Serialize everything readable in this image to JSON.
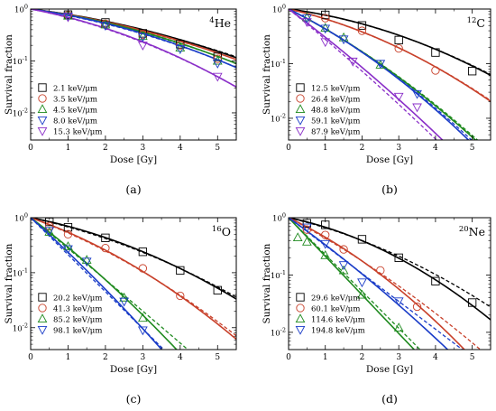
{
  "chart_data": [
    {
      "type": "scatter",
      "panel_label": "(a)",
      "ion_mass": "4",
      "ion_symbol": "He",
      "xlabel": "Dose [Gy]",
      "ylabel": "Survival fraction",
      "xlim": [
        0,
        5.5
      ],
      "ylim": [
        0.003,
        1
      ],
      "yscale": "log",
      "x_ticks": [
        0,
        1,
        2,
        3,
        4,
        5
      ],
      "y_ticks": [
        {
          "value": 1,
          "mantissa": "10",
          "exponent": "0"
        },
        {
          "value": 0.1,
          "mantissa": "10",
          "exponent": "-1"
        },
        {
          "value": 0.01,
          "mantissa": "10",
          "exponent": "-2"
        }
      ],
      "series": [
        {
          "name": "2.1 keV/μm",
          "marker": "square",
          "color": "#000000",
          "points": [
            [
              1,
              0.78
            ],
            [
              2,
              0.55
            ],
            [
              3,
              0.34
            ],
            [
              4,
              0.21
            ],
            [
              5,
              0.12
            ]
          ],
          "alpha": 0.2,
          "beta": 0.035,
          "alpha_dashed": 0.22,
          "beta_dashed": 0.03
        },
        {
          "name": "3.5 keV/μm",
          "marker": "circle",
          "color": "#c8402a",
          "points": [
            [
              1,
              0.76
            ],
            [
              2,
              0.52
            ],
            [
              3,
              0.32
            ],
            [
              4,
              0.2
            ],
            [
              5,
              0.11
            ]
          ],
          "alpha": 0.21,
          "beta": 0.036,
          "alpha_dashed": 0.23,
          "beta_dashed": 0.032
        },
        {
          "name": "4.5 keV/μm",
          "marker": "triangle-up",
          "color": "#1f8a1f",
          "points": [
            [
              1,
              0.74
            ],
            [
              2,
              0.5
            ],
            [
              3,
              0.3
            ],
            [
              4,
              0.18
            ],
            [
              5,
              0.1
            ]
          ],
          "alpha": 0.22,
          "beta": 0.04,
          "alpha_dashed": 0.24,
          "beta_dashed": 0.036
        },
        {
          "name": "8.0 keV/μm",
          "marker": "triangle-down",
          "color": "#1a3cc8",
          "points": [
            [
              1,
              0.72
            ],
            [
              2,
              0.48
            ],
            [
              3,
              0.29
            ],
            [
              4,
              0.17
            ],
            [
              5,
              0.09
            ]
          ],
          "alpha": 0.23,
          "beta": 0.044,
          "alpha_dashed": 0.25,
          "beta_dashed": 0.04
        },
        {
          "name": "15.3 keV/μm",
          "marker": "triangle-down",
          "color": "#8a2fc8",
          "points": [
            [
              1,
              0.7
            ],
            [
              3,
              0.2
            ],
            [
              5,
              0.05
            ]
          ],
          "alpha": 0.31,
          "beta": 0.058,
          "alpha_dashed": 0.33,
          "beta_dashed": 0.054
        }
      ]
    },
    {
      "type": "scatter",
      "panel_label": "(b)",
      "ion_mass": "12",
      "ion_symbol": "C",
      "xlabel": "Dose [Gy]",
      "ylabel": "Survival fraction",
      "xlim": [
        0,
        5.5
      ],
      "ylim": [
        0.004,
        1
      ],
      "yscale": "log",
      "x_ticks": [
        0,
        1,
        2,
        3,
        4,
        5
      ],
      "y_ticks": [
        {
          "value": 1,
          "mantissa": "10",
          "exponent": "0"
        },
        {
          "value": 0.1,
          "mantissa": "10",
          "exponent": "-1"
        },
        {
          "value": 0.01,
          "mantissa": "10",
          "exponent": "-2"
        }
      ],
      "series": [
        {
          "name": "12.5 keV/μm",
          "marker": "square",
          "color": "#000000",
          "points": [
            [
              1,
              0.78
            ],
            [
              2,
              0.5
            ],
            [
              3,
              0.27
            ],
            [
              4,
              0.16
            ],
            [
              5,
              0.073
            ]
          ],
          "alpha": 0.2,
          "beta": 0.056,
          "alpha_dashed": 0.21,
          "beta_dashed": 0.053
        },
        {
          "name": "26.4 keV/μm",
          "marker": "circle",
          "color": "#c8402a",
          "points": [
            [
              1,
              0.68
            ],
            [
              2,
              0.4
            ],
            [
              3,
              0.19
            ],
            [
              4,
              0.075
            ]
          ],
          "alpha": 0.35,
          "beta": 0.065,
          "alpha_dashed": 0.36,
          "beta_dashed": 0.062
        },
        {
          "name": "48.8 keV/μm",
          "marker": "triangle-up",
          "color": "#1f8a1f",
          "points": [
            [
              0.5,
              0.7
            ],
            [
              1,
              0.45
            ],
            [
              1.5,
              0.3
            ],
            [
              2.5,
              0.095
            ]
          ],
          "alpha": 0.78,
          "beta": 0.06,
          "alpha_dashed": 0.78,
          "beta_dashed": 0.057
        },
        {
          "name": "59.1 keV/μm",
          "marker": "triangle-down",
          "color": "#1a3cc8",
          "points": [
            [
              0.5,
              0.68
            ],
            [
              1,
              0.44
            ],
            [
              1.5,
              0.28
            ],
            [
              2.5,
              0.1
            ],
            [
              3.5,
              0.028
            ]
          ],
          "alpha": 0.76,
          "beta": 0.075,
          "alpha_dashed": 0.78,
          "beta_dashed": 0.066
        },
        {
          "name": "87.9 keV/μm",
          "marker": "triangle-down",
          "color": "#8a2fc8",
          "points": [
            [
              0.5,
              0.58
            ],
            [
              1,
              0.25
            ],
            [
              1.75,
              0.11
            ],
            [
              3,
              0.025
            ],
            [
              3.5,
              0.016
            ]
          ],
          "alpha": 1.15,
          "beta": 0.04,
          "alpha_dashed": 1.25,
          "beta_dashed": 0.03
        }
      ]
    },
    {
      "type": "scatter",
      "panel_label": "(c)",
      "ion_mass": "16",
      "ion_symbol": "O",
      "xlabel": "Dose [Gy]",
      "ylabel": "Survival fraction",
      "xlim": [
        0,
        5.5
      ],
      "ylim": [
        0.004,
        1
      ],
      "yscale": "log",
      "x_ticks": [
        0,
        1,
        2,
        3,
        4,
        5
      ],
      "y_ticks": [
        {
          "value": 1,
          "mantissa": "10",
          "exponent": "0"
        },
        {
          "value": 0.1,
          "mantissa": "10",
          "exponent": "-1"
        },
        {
          "value": 0.01,
          "mantissa": "10",
          "exponent": "-2"
        }
      ],
      "series": [
        {
          "name": "20.2 keV/μm",
          "marker": "square",
          "color": "#000000",
          "points": [
            [
              0.5,
              0.84
            ],
            [
              1,
              0.67
            ],
            [
              2,
              0.43
            ],
            [
              3,
              0.24
            ],
            [
              4,
              0.11
            ],
            [
              5,
              0.048
            ]
          ],
          "alpha": 0.3,
          "beta": 0.058,
          "alpha_dashed": 0.34,
          "beta_dashed": 0.048
        },
        {
          "name": "41.3 keV/μm",
          "marker": "circle",
          "color": "#c8402a",
          "points": [
            [
              0.5,
              0.7
            ],
            [
              1,
              0.5
            ],
            [
              2,
              0.28
            ],
            [
              3,
              0.12
            ],
            [
              4,
              0.038
            ]
          ],
          "alpha": 0.54,
          "beta": 0.07,
          "alpha_dashed": 0.58,
          "beta_dashed": 0.058
        },
        {
          "name": "85.2 keV/μm",
          "marker": "triangle-up",
          "color": "#1f8a1f",
          "points": [
            [
              0.5,
              0.55
            ],
            [
              1,
              0.3
            ],
            [
              1.5,
              0.17
            ],
            [
              2.5,
              0.035
            ],
            [
              3,
              0.015
            ]
          ],
          "alpha": 1.18,
          "beta": 0.06,
          "alpha_dashed": 1.28,
          "beta_dashed": 0.008
        },
        {
          "name": "98.1 keV/μm",
          "marker": "triangle-down",
          "color": "#1a3cc8",
          "points": [
            [
              0.5,
              0.58
            ],
            [
              1,
              0.27
            ],
            [
              1.5,
              0.16
            ],
            [
              2.5,
              0.03
            ],
            [
              3,
              0.009
            ]
          ],
          "alpha": 1.4,
          "beta": 0.05,
          "alpha_dashed": 1.55,
          "beta_dashed": 0.0
        }
      ]
    },
    {
      "type": "scatter",
      "panel_label": "(d)",
      "ion_mass": "20",
      "ion_symbol": "Ne",
      "xlabel": "Dose [Gy]",
      "ylabel": "Survival fraction",
      "xlim": [
        0,
        5.5
      ],
      "ylim": [
        0.005,
        1
      ],
      "yscale": "log",
      "x_ticks": [
        0,
        1,
        2,
        3,
        4,
        5
      ],
      "y_ticks": [
        {
          "value": 1,
          "mantissa": "10",
          "exponent": "0"
        },
        {
          "value": 0.1,
          "mantissa": "10",
          "exponent": "-1"
        },
        {
          "value": 0.01,
          "mantissa": "10",
          "exponent": "-2"
        }
      ],
      "series": [
        {
          "name": "29.6 keV/μm",
          "marker": "square",
          "color": "#000000",
          "points": [
            [
              0.5,
              0.8
            ],
            [
              1,
              0.75
            ],
            [
              2,
              0.42
            ],
            [
              3,
              0.2
            ],
            [
              4,
              0.078
            ],
            [
              5,
              0.033
            ]
          ],
          "alpha": 0.3,
          "beta": 0.081,
          "alpha_dashed": 0.35,
          "beta_dashed": 0.055
        },
        {
          "name": "60.1 keV/μm",
          "marker": "circle",
          "color": "#c8402a",
          "points": [
            [
              0.5,
              0.62
            ],
            [
              1,
              0.5
            ],
            [
              1.5,
              0.28
            ],
            [
              2.5,
              0.12
            ],
            [
              3.5,
              0.028
            ]
          ],
          "alpha": 0.7,
          "beta": 0.085,
          "alpha_dashed": 0.78,
          "beta_dashed": 0.045
        },
        {
          "name": "114.6 keV/μm",
          "marker": "triangle-up",
          "color": "#1f8a1f",
          "points": [
            [
              0.25,
              0.45
            ],
            [
              0.5,
              0.38
            ],
            [
              1,
              0.22
            ],
            [
              1.5,
              0.12
            ],
            [
              2,
              0.045
            ],
            [
              3,
              0.012
            ]
          ],
          "alpha": 1.55,
          "beta": 0.0,
          "alpha_dashed": 1.48,
          "beta_dashed": 0.0
        },
        {
          "name": "194.8 keV/μm",
          "marker": "triangle-down",
          "color": "#1a3cc8",
          "points": [
            [
              0.5,
              0.68
            ],
            [
              1,
              0.35
            ],
            [
              1.5,
              0.15
            ],
            [
              2,
              0.075
            ],
            [
              3,
              0.035
            ]
          ],
          "alpha": 1.05,
          "beta": 0.04,
          "alpha_dashed": 1.12,
          "beta_dashed": 0.0
        }
      ]
    }
  ]
}
